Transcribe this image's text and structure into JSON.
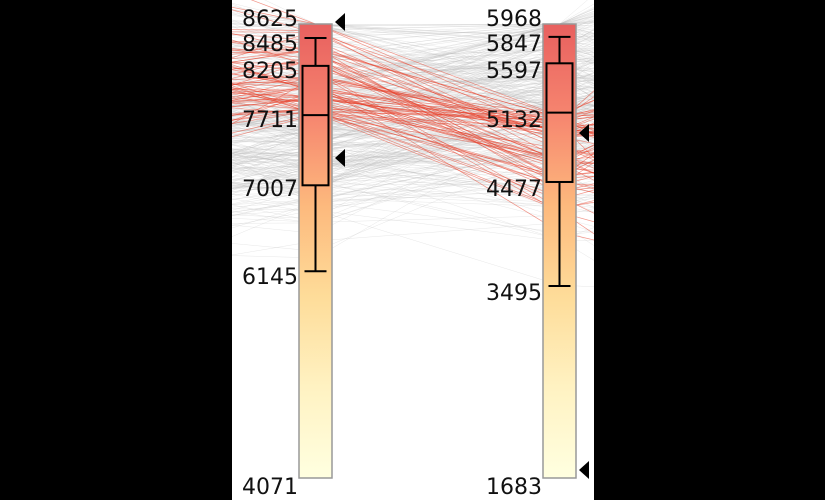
{
  "chart_data": {
    "type": "parallel-coordinates",
    "title": "",
    "axes": [
      {
        "name": "",
        "min": 4071,
        "max": 8625,
        "ticks": [
          8625,
          8485,
          8205,
          7711,
          7007,
          6145,
          4071
        ],
        "box": {
          "whisker_low": 6145,
          "q1": 7007,
          "median": 7711,
          "q3": 8205,
          "whisker_high": 8485
        },
        "brush": [
          7711,
          8625
        ]
      },
      {
        "name": "",
        "min": 1683,
        "max": 5968,
        "ticks": [
          5968,
          5847,
          5597,
          5132,
          4477,
          3495,
          1683
        ],
        "box": {
          "whisker_low": 3495,
          "q1": 4477,
          "median": 5132,
          "q3": 5597,
          "whisker_high": 5847
        },
        "brush": [
          1683,
          5132
        ]
      }
    ],
    "line_count": 420,
    "selected_color": "#e8402a",
    "unselected_color": "#bbbbbb",
    "colormap": [
      "#ffffe0",
      "#fff2c2",
      "#fedc99",
      "#fdb97d",
      "#f6856f",
      "#e8605f"
    ],
    "grid": false,
    "legend": "none"
  }
}
